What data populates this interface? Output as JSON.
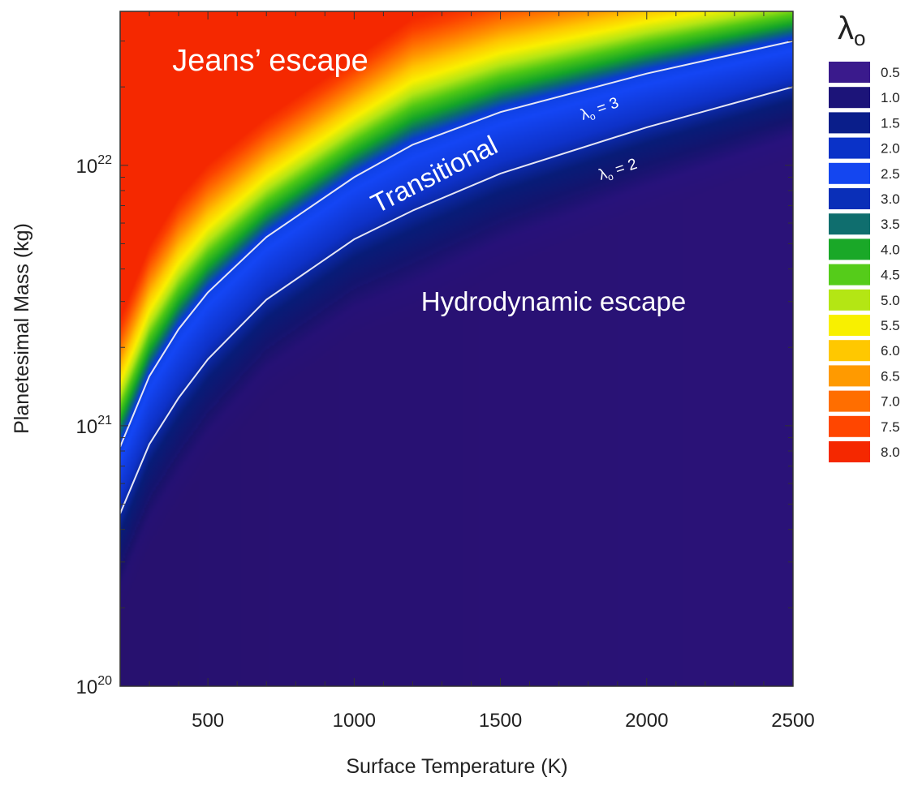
{
  "chart_data": {
    "type": "heatmap",
    "xlabel": "Surface Temperature (K)",
    "ylabel": "Planetesimal Mass (kg)",
    "xlim": [
      200,
      2500
    ],
    "ylim": [
      1e+20,
      3.9e+22
    ],
    "yscale": "log",
    "x_ticks": [
      500,
      1000,
      1500,
      2000,
      2500
    ],
    "x_tick_labels": [
      "500",
      "1000",
      "1500",
      "2000",
      "2500"
    ],
    "y_ticks": [
      {
        "value": 1e+20,
        "base": "10",
        "exp": "20"
      },
      {
        "value": 1e+21,
        "base": "10",
        "exp": "21"
      },
      {
        "value": 1e+22,
        "base": "10",
        "exp": "22"
      }
    ],
    "colorbar": {
      "title": "λ",
      "title_sub": "o",
      "position": "right",
      "levels": [
        {
          "label": "0.5",
          "color": "#3a1a8c"
        },
        {
          "label": "1.0",
          "color": "#1c1479"
        },
        {
          "label": "1.5",
          "color": "#0a1e8a"
        },
        {
          "label": "2.0",
          "color": "#0a32c8"
        },
        {
          "label": "2.5",
          "color": "#1446f0"
        },
        {
          "label": "3.0",
          "color": "#0a2fb8"
        },
        {
          "label": "3.5",
          "color": "#0f6e6e"
        },
        {
          "label": "4.0",
          "color": "#1aa828"
        },
        {
          "label": "4.5",
          "color": "#55cc1a"
        },
        {
          "label": "5.0",
          "color": "#b4e614"
        },
        {
          "label": "5.5",
          "color": "#f8f000"
        },
        {
          "label": "6.0",
          "color": "#ffc800"
        },
        {
          "label": "6.5",
          "color": "#ff9a00"
        },
        {
          "label": "7.0",
          "color": "#ff6e00"
        },
        {
          "label": "7.5",
          "color": "#ff4600"
        },
        {
          "label": "8.0",
          "color": "#f52800"
        }
      ]
    },
    "contours": [
      {
        "label": "λ",
        "label_sub": "o",
        "label_rest": " = 3",
        "level": 3,
        "points": [
          [
            200,
            8.3e+20
          ],
          [
            300,
            1.55e+21
          ],
          [
            400,
            2.35e+21
          ],
          [
            500,
            3.25e+21
          ],
          [
            700,
            5.3e+21
          ],
          [
            1000,
            9e+21
          ],
          [
            1200,
            1.2e+22
          ],
          [
            1500,
            1.6e+22
          ],
          [
            2000,
            2.25e+22
          ],
          [
            2500,
            3e+22
          ]
        ]
      },
      {
        "label": "λ",
        "label_sub": "o",
        "label_rest": " = 2",
        "level": 2,
        "points": [
          [
            200,
            4.6e+20
          ],
          [
            300,
            8.5e+20
          ],
          [
            400,
            1.28e+21
          ],
          [
            500,
            1.8e+21
          ],
          [
            700,
            3.05e+21
          ],
          [
            1000,
            5.2e+21
          ],
          [
            1200,
            6.7e+21
          ],
          [
            1500,
            9.3e+21
          ],
          [
            2000,
            1.4e+22
          ],
          [
            2500,
            2e+22
          ]
        ]
      }
    ],
    "regions": [
      {
        "label": "Jeans’ escape"
      },
      {
        "label": "Transitional"
      },
      {
        "label": "Hydrodynamic escape"
      }
    ]
  }
}
